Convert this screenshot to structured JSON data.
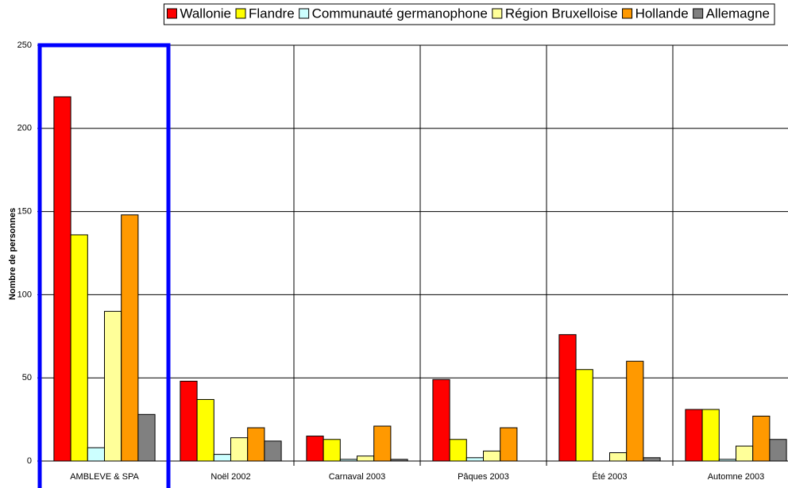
{
  "chart_data": {
    "type": "bar",
    "y_label": "Nombre de personnes",
    "categories": [
      "AMBLEVE & SPA",
      "Noël 2002",
      "Carnaval 2003",
      "Pâques 2003",
      "Été 2003",
      "Automne 2003"
    ],
    "series": [
      {
        "name": "Wallonie",
        "color": "#ff0000",
        "values": [
          219,
          48,
          15,
          49,
          76,
          31
        ]
      },
      {
        "name": "Flandre",
        "color": "#ffff00",
        "values": [
          136,
          37,
          13,
          13,
          55,
          31
        ]
      },
      {
        "name": "Communauté germanophone",
        "color": "#ccffff",
        "values": [
          8,
          4,
          1,
          2,
          0,
          1
        ]
      },
      {
        "name": "Région Bruxelloise",
        "color": "#ffff99",
        "values": [
          90,
          14,
          3,
          6,
          5,
          9
        ]
      },
      {
        "name": "Hollande",
        "color": "#ff9900",
        "values": [
          148,
          20,
          21,
          20,
          60,
          27
        ]
      },
      {
        "name": "Allemagne",
        "color": "#808080",
        "values": [
          28,
          12,
          1,
          0,
          2,
          13
        ]
      }
    ],
    "ylim": [
      0,
      250
    ],
    "yticks": [
      0,
      50,
      100,
      150,
      200,
      250
    ],
    "grid": true
  }
}
